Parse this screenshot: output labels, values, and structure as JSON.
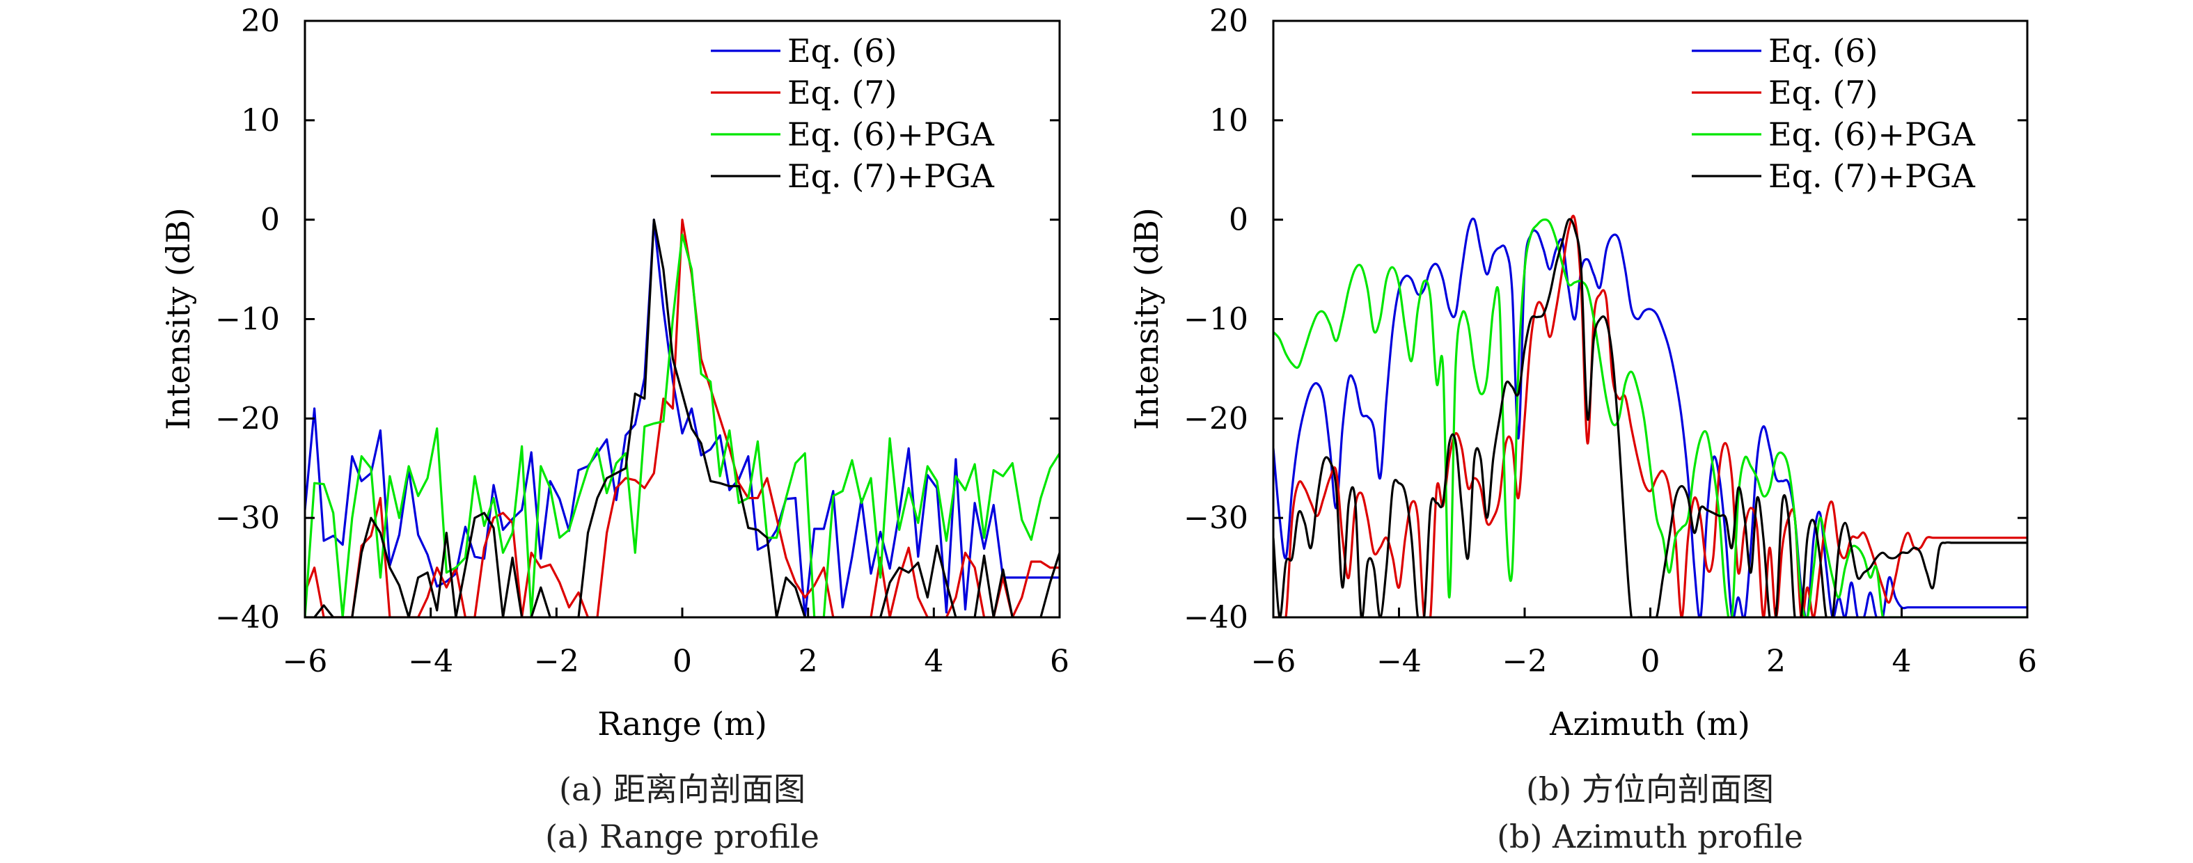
{
  "figure": {
    "colors": {
      "eq6": "#0000dd",
      "eq7": "#dd0000",
      "eq6_pga": "#00e600",
      "eq7_pga": "#000000",
      "axis": "#000000"
    }
  },
  "chart_data": [
    {
      "type": "line",
      "id": "range",
      "title": "",
      "caption_cn": "(a) 距离向剖面图",
      "caption_en": "(a) Range profile",
      "xlabel": "Range (m)",
      "ylabel": "Intensity (dB)",
      "xlim": [
        -6,
        6
      ],
      "ylim": [
        -40,
        20
      ],
      "xticks": [
        -6,
        -4,
        -2,
        0,
        2,
        4,
        6
      ],
      "xtick_labels": [
        "−6",
        "−4",
        "−2",
        "0",
        "2",
        "4",
        "6"
      ],
      "yticks": [
        -40,
        -30,
        -20,
        -10,
        0,
        10,
        20
      ],
      "ytick_labels": [
        "−40",
        "−30",
        "−20",
        "−10",
        "0",
        "10",
        "20"
      ],
      "grid": false,
      "legend_position": "top-right",
      "smooth": false,
      "x_start": -6,
      "x_step": 0.15,
      "series": [
        {
          "name": "Eq. (6)",
          "color_key": "eq6",
          "values": [
            -29.2,
            -19,
            -32.3,
            -31.8,
            -32.7,
            -23.8,
            -26.3,
            -25.5,
            -21.2,
            -34.8,
            -31.7,
            -25.1,
            -31.7,
            -33.7,
            -36.9,
            -36.4,
            -35.6,
            -30.9,
            -33.9,
            -34.1,
            -26.7,
            -31.2,
            -30.1,
            -29.2,
            -23.4,
            -34.1,
            -26.3,
            -28.1,
            -31.3,
            -25.2,
            -24.8,
            -23.5,
            -22.1,
            -28.2,
            -21.7,
            -20.6,
            -15.9,
            0,
            -9,
            -16.2,
            -21.5,
            -19,
            -23.7,
            -23.1,
            -21.7,
            -27.2,
            -26.1,
            -23.8,
            -33.2,
            -32.7,
            -31.2,
            -28.1,
            -28,
            -40,
            -31.1,
            -31.1,
            -27.3,
            -39,
            -33.9,
            -28.1,
            -35.6,
            -31.4,
            -35.1,
            -29.5,
            -23,
            -33.9,
            -25.7,
            -27,
            -39.5,
            -24.1,
            -39.2,
            -28.5,
            -33.1,
            -28.7,
            -36,
            -36,
            -36,
            -36,
            -36,
            -36,
            -36
          ]
        },
        {
          "name": "Eq. (7)",
          "color_key": "eq7",
          "values": [
            -37.5,
            -35,
            -40,
            -40,
            -40,
            -40,
            -32.8,
            -31.8,
            -28,
            -40,
            -40,
            -40,
            -40,
            -38,
            -35,
            -37,
            -35,
            -40,
            -40,
            -33,
            -30,
            -29.5,
            -30.5,
            -40,
            -33.5,
            -35,
            -34.7,
            -36.5,
            -39,
            -37.5,
            -40,
            -40,
            -31.5,
            -27,
            -26,
            -26.2,
            -27,
            -25.5,
            -18,
            -19,
            0,
            -5.5,
            -14,
            -17,
            -20,
            -23,
            -26.5,
            -28,
            -28,
            -26,
            -30,
            -34,
            -36.5,
            -38,
            -36.8,
            -35,
            -40,
            -40,
            -40,
            -40,
            -40,
            -34,
            -40,
            -36,
            -33,
            -38,
            -40,
            -40,
            -40,
            -38,
            -33.5,
            -35,
            -40,
            -40,
            -36,
            -40,
            -38,
            -34.4,
            -34.4,
            -35,
            -35
          ]
        },
        {
          "name": "Eq. (6)+PGA",
          "color_key": "eq6_pga",
          "values": [
            -40,
            -26.5,
            -26.6,
            -29.5,
            -40,
            -30,
            -23.8,
            -25,
            -36,
            -25.8,
            -30,
            -24.8,
            -27.8,
            -26,
            -21,
            -35.5,
            -35,
            -34,
            -25.8,
            -30.8,
            -28,
            -33.5,
            -31.5,
            -22.8,
            -40,
            -24.8,
            -27,
            -32,
            -31.2,
            -28,
            -25,
            -23,
            -27.5,
            -24.5,
            -23.5,
            -33.5,
            -20.8,
            -20.5,
            -20.3,
            -10,
            -1.5,
            -5,
            -15.5,
            -16.3,
            -25.8,
            -21.2,
            -28.5,
            -28,
            -22.3,
            -32,
            -32,
            -28,
            -24.5,
            -23.5,
            -40,
            -40,
            -27.8,
            -27.3,
            -24.2,
            -28.5,
            -26,
            -36,
            -22,
            -31.2,
            -27,
            -30.5,
            -24.8,
            -26.3,
            -32.3,
            -25.8,
            -27.2,
            -24.6,
            -32,
            -25.2,
            -25.8,
            -24.5,
            -30.2,
            -32.2,
            -28,
            -25,
            -23.5
          ]
        },
        {
          "name": "Eq. (7)+PGA",
          "color_key": "eq7_pga",
          "values": [
            -40,
            -40,
            -38.8,
            -40,
            -40,
            -40,
            -33.5,
            -30,
            -31.5,
            -35,
            -36.8,
            -40,
            -36,
            -35.5,
            -39.3,
            -31.5,
            -40,
            -35,
            -30,
            -29.5,
            -31,
            -40,
            -34,
            -40,
            -40,
            -37,
            -40,
            -40,
            -40,
            -40,
            -31.5,
            -28,
            -26,
            -25.5,
            -25,
            -17.5,
            -18,
            0,
            -5,
            -14,
            -17.5,
            -21,
            -22.5,
            -26.3,
            -26.5,
            -26.8,
            -26.8,
            -31,
            -31.2,
            -32,
            -40,
            -36,
            -37,
            -40,
            -40,
            -40,
            -40,
            -40,
            -40,
            -40,
            -40,
            -40,
            -36.5,
            -35,
            -35.5,
            -34.5,
            -38,
            -32.8,
            -36.5,
            -40,
            -40,
            -40,
            -33.8,
            -40,
            -35.2,
            -40,
            -40,
            -40,
            -40,
            -36.5,
            -33.5
          ]
        }
      ]
    },
    {
      "type": "line",
      "id": "azimuth",
      "title": "",
      "caption_cn": "(b) 方位向剖面图",
      "caption_en": "(b) Azimuth profile",
      "xlabel": "Azimuth (m)",
      "ylabel": "Intensity (dB)",
      "xlim": [
        -6,
        6
      ],
      "ylim": [
        -40,
        20
      ],
      "xticks": [
        -6,
        -4,
        -2,
        0,
        2,
        4,
        6
      ],
      "xtick_labels": [
        "−6",
        "−4",
        "−2",
        "0",
        "2",
        "4",
        "6"
      ],
      "yticks": [
        -40,
        -30,
        -20,
        -10,
        0,
        10,
        20
      ],
      "ytick_labels": [
        "−40",
        "−30",
        "−20",
        "−10",
        "0",
        "10",
        "20"
      ],
      "grid": false,
      "legend_position": "top-right",
      "smooth": true,
      "x_start": -6,
      "x_step": 0.1,
      "series": [
        {
          "name": "Eq. (6)",
          "color_key": "eq6",
          "values": [
            -23,
            -30,
            -34,
            -27,
            -22,
            -19,
            -17,
            -16.5,
            -18,
            -23,
            -29,
            -21,
            -16,
            -16.5,
            -19.5,
            -19.8,
            -21,
            -26,
            -18,
            -11,
            -7,
            -5.7,
            -6,
            -7.5,
            -7,
            -5,
            -4.5,
            -6,
            -9,
            -9.5,
            -5,
            -1,
            0,
            -3,
            -5.5,
            -3.5,
            -2.8,
            -3,
            -7,
            -22,
            -5,
            -1.5,
            -1.3,
            -3,
            -5,
            -3,
            -2.2,
            -7,
            -10,
            -5,
            -4,
            -5.5,
            -6.8,
            -3,
            -1.6,
            -2,
            -5,
            -9,
            -10,
            -9.2,
            -9,
            -9.5,
            -11,
            -13,
            -16,
            -20,
            -26,
            -35,
            -40,
            -30,
            -24,
            -26,
            -32,
            -40,
            -38,
            -40,
            -33,
            -24,
            -20.8,
            -23,
            -26,
            -26.3,
            -26.5,
            -30,
            -37,
            -40,
            -32,
            -29.5,
            -35,
            -40,
            -38,
            -40,
            -36.5,
            -40,
            -40,
            -37.5,
            -40,
            -40,
            -36,
            -38,
            -39,
            -39,
            -39,
            -39,
            -39,
            -39,
            -39,
            -39,
            -39,
            -39,
            -39,
            -39,
            -39,
            -39,
            -39,
            -39,
            -39,
            -39,
            -39,
            -39,
            -39
          ]
        },
        {
          "name": "Eq. (7)",
          "color_key": "eq7",
          "values": [
            -40,
            -40,
            -40,
            -30,
            -26.5,
            -27,
            -28.5,
            -29.8,
            -28,
            -26,
            -25.3,
            -32,
            -36,
            -29,
            -27.5,
            -30,
            -33.5,
            -33,
            -32,
            -34,
            -37,
            -32,
            -28.5,
            -30,
            -40,
            -40,
            -27,
            -28.8,
            -24,
            -21.5,
            -23,
            -27,
            -26,
            -27,
            -30.5,
            -30,
            -28,
            -22.5,
            -22.5,
            -28,
            -20,
            -12,
            -8.5,
            -9,
            -11.8,
            -9,
            -5,
            -1,
            0,
            -7,
            -22.5,
            -10,
            -7.5,
            -8,
            -16,
            -18,
            -17.8,
            -21,
            -24,
            -26.5,
            -27.3,
            -26,
            -25.3,
            -27,
            -32,
            -40,
            -32,
            -28,
            -30,
            -35,
            -34,
            -25,
            -22.5,
            -26,
            -35.5,
            -31,
            -29,
            -31,
            -40,
            -33,
            -40,
            -33,
            -30,
            -30,
            -40,
            -37,
            -40,
            -35,
            -30,
            -28.5,
            -33,
            -34,
            -32,
            -32,
            -31.5,
            -33,
            -35,
            -37,
            -38.5,
            -36,
            -33,
            -31.5,
            -33,
            -33,
            -32,
            -32,
            -32,
            -32,
            -32,
            -32,
            -32,
            -32,
            -32,
            -32,
            -32,
            -32,
            -32,
            -32,
            -32,
            -32,
            -32
          ]
        },
        {
          "name": "Eq. (6)+PGA",
          "color_key": "eq6_pga",
          "values": [
            -11.3,
            -12,
            -13.5,
            -14.5,
            -14.8,
            -13,
            -11,
            -9.5,
            -9.3,
            -10.5,
            -12.2,
            -10,
            -7,
            -5,
            -4.7,
            -7,
            -11.2,
            -10,
            -6,
            -4.8,
            -6.5,
            -11,
            -14.2,
            -9,
            -6.2,
            -7.8,
            -16.5,
            -14.8,
            -38,
            -15,
            -9.5,
            -10.5,
            -15,
            -17.5,
            -16,
            -9,
            -8.5,
            -30,
            -35.5,
            -15,
            -5,
            -1.5,
            -0.5,
            0,
            -0.3,
            -2,
            -4.5,
            -6.5,
            -6.3,
            -6.2,
            -7,
            -10,
            -14,
            -18,
            -20.5,
            -20,
            -16.5,
            -15.3,
            -17,
            -20,
            -25,
            -30,
            -32,
            -35.5,
            -32,
            -31,
            -30,
            -25,
            -22,
            -21.5,
            -25,
            -30,
            -38,
            -40,
            -28,
            -24,
            -24.8,
            -26,
            -27.8,
            -27,
            -24,
            -23.5,
            -25,
            -30,
            -38,
            -40,
            -35,
            -30,
            -33,
            -36,
            -38,
            -35,
            -33,
            -33,
            -34,
            -36,
            -35,
            -40,
            -40,
            -40,
            -40,
            -40,
            -40,
            -40,
            -40,
            -40,
            -40,
            -40,
            -40,
            -40,
            -40,
            -40,
            -40,
            -40,
            -40,
            -40,
            -40,
            -40,
            -40,
            -40,
            -40
          ]
        },
        {
          "name": "Eq. (7)+PGA",
          "color_key": "eq7_pga",
          "values": [
            -32,
            -40,
            -34.5,
            -34,
            -29.5,
            -30.5,
            -33,
            -28,
            -24.3,
            -24.3,
            -27,
            -37,
            -28.5,
            -28,
            -40,
            -34.5,
            -35,
            -40,
            -35,
            -27,
            -26.5,
            -27.5,
            -32,
            -40,
            -40,
            -29,
            -28.5,
            -28.5,
            -22.5,
            -22.3,
            -29,
            -34,
            -24,
            -24,
            -30,
            -24,
            -20,
            -16.5,
            -16.8,
            -17.5,
            -13,
            -10,
            -9.8,
            -9.5,
            -7.5,
            -4.5,
            -2.2,
            0,
            -1,
            -5,
            -20,
            -12,
            -10,
            -10.2,
            -14,
            -22,
            -32,
            -40,
            -40,
            -40,
            -40,
            -40,
            -36,
            -32,
            -28,
            -26.8,
            -28,
            -31.5,
            -29,
            -29.2,
            -29.5,
            -29.8,
            -30,
            -33,
            -27,
            -30,
            -35.5,
            -28,
            -32,
            -40,
            -40,
            -28.5,
            -30,
            -40,
            -40,
            -32,
            -30.3,
            -34,
            -40,
            -40,
            -33,
            -30.5,
            -33,
            -36,
            -35.5,
            -35,
            -34,
            -33.5,
            -34,
            -34,
            -33.5,
            -33.5,
            -33,
            -33.5,
            -35.5,
            -37,
            -33,
            -32.5,
            -32.5,
            -32.5,
            -32.5,
            -32.5,
            -32.5,
            -32.5,
            -32.5,
            -32.5,
            -32.5,
            -32.5,
            -32.5,
            -32.5,
            -32.5
          ]
        }
      ]
    }
  ]
}
